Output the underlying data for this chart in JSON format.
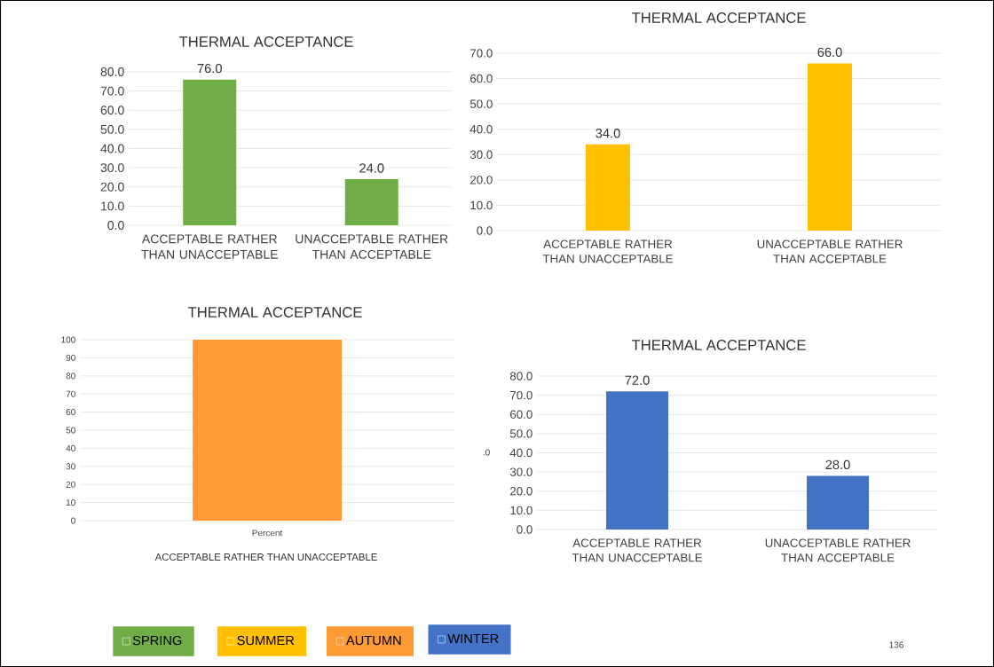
{
  "chart_data": [
    {
      "type": "bar",
      "title": "THERMAL ACCEPTANCE",
      "categories": [
        "ACCEPTABLE RATHER THAN UNACCEPTABLE",
        "UNACCEPTABLE RATHER THAN ACCEPTABLE"
      ],
      "series": [
        {
          "name": "SPRING",
          "color": "#70ad47",
          "values": [
            76,
            24
          ],
          "value_labels": [
            "76.0",
            "24.0"
          ]
        }
      ],
      "ylim": [
        0,
        80
      ],
      "yticks": [
        {
          "value": 0,
          "label": "0.0"
        },
        {
          "value": 10,
          "label": "10.0"
        },
        {
          "value": 20,
          "label": "20.0"
        },
        {
          "value": 30,
          "label": "30.0"
        },
        {
          "value": 40,
          "label": "40.0"
        },
        {
          "value": 50,
          "label": "50.0"
        },
        {
          "value": 60,
          "label": "60.0"
        },
        {
          "value": 70,
          "label": "70.0"
        },
        {
          "value": 80,
          "label": "80.0"
        }
      ],
      "grid": "y",
      "legend": "bottom"
    },
    {
      "type": "bar",
      "title": "THERMAL ACCEPTANCE",
      "categories": [
        "ACCEPTABLE RATHER THAN UNACCEPTABLE",
        "UNACCEPTABLE RATHER THAN ACCEPTABLE"
      ],
      "series": [
        {
          "name": "SUMMER",
          "color": "#ffc000",
          "values": [
            34,
            66
          ],
          "value_labels": [
            "34.0",
            "66.0"
          ]
        }
      ],
      "ylim": [
        0,
        70
      ],
      "yticks": [
        {
          "value": 0,
          "label": "0.0"
        },
        {
          "value": 10,
          "label": "10.0"
        },
        {
          "value": 20,
          "label": "20.0"
        },
        {
          "value": 30,
          "label": "30.0"
        },
        {
          "value": 40,
          "label": "40.0"
        },
        {
          "value": 50,
          "label": "50.0"
        },
        {
          "value": 60,
          "label": "60.0"
        },
        {
          "value": 70,
          "label": "70.0"
        }
      ],
      "grid": "y",
      "legend": "bottom"
    },
    {
      "type": "bar",
      "title": "THERMAL ACCEPTANCE",
      "xlabel": "ACCEPTABLE  RATHER THAN UNACCEPTABLE",
      "categories": [
        "Percent"
      ],
      "series": [
        {
          "name": "AUTUMN",
          "color": "#fd9a33",
          "values": [
            100
          ]
        }
      ],
      "ylim": [
        0,
        100
      ],
      "yticks": [
        0,
        10,
        20,
        30,
        40,
        50,
        60,
        70,
        80,
        90,
        100
      ],
      "grid": "y",
      "legend": "bottom"
    },
    {
      "type": "bar",
      "title": "THERMAL ACCEPTANCE",
      "categories": [
        "ACCEPTABLE RATHER THAN UNACCEPTABLE",
        "UNACCEPTABLE RATHER THAN ACCEPTABLE"
      ],
      "series": [
        {
          "name": "WINTER",
          "color": "#4472c4",
          "values": [
            72,
            28
          ],
          "value_labels": [
            "72.0",
            "28.0"
          ]
        }
      ],
      "ylim": [
        0,
        80
      ],
      "yticks": [
        {
          "value": 0,
          "label": "0.0"
        },
        {
          "value": 10,
          "label": "10.0"
        },
        {
          "value": 20,
          "label": "20.0"
        },
        {
          "value": 30,
          "label": "30.0"
        },
        {
          "value": 40,
          "label": "40.0"
        },
        {
          "value": 50,
          "label": "50.0"
        },
        {
          "value": 60,
          "label": "60.0"
        },
        {
          "value": 70,
          "label": "70.0"
        },
        {
          "value": 80,
          "label": "80.0"
        }
      ],
      "grid": "y",
      "legend": "bottom",
      "annotations": [
        ".0",
        "136"
      ]
    }
  ]
}
